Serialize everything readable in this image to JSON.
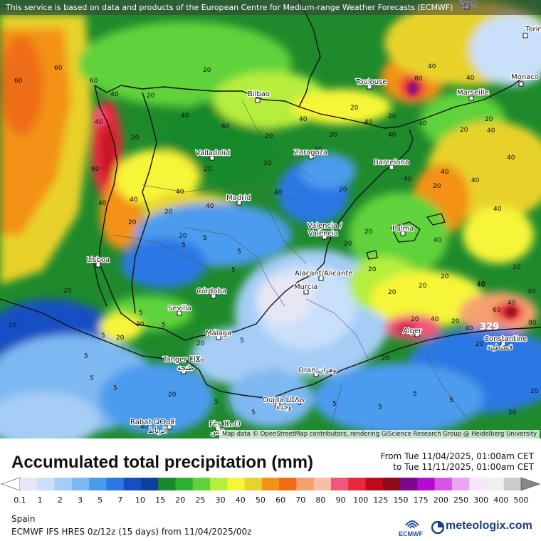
{
  "banner_text": "This service is based on data and products of the European Centre for Medium-range Weather Forecasts (ECMWF)",
  "map_credit": "Map data © OpenStreetMap contributors, rendering GIScience Research Group @ Heidelberg University",
  "title": "Accumulated total precipitation (mm)",
  "period_from": "From Tue 11/04/2025, 01:00am CET",
  "period_to": "to Tue 11/11/2025, 01:00am CET",
  "region": "Spain",
  "model_info": "ECMWF IFS HRES 0z/12z (15 days) from  11/04/2025/00z",
  "ecmwf_label": "ECMWF",
  "brand": "meteologix.com",
  "max_value_label": "329",
  "legend": {
    "ticks": [
      "0.1",
      "1",
      "2",
      "3",
      "5",
      "7",
      "10",
      "15",
      "20",
      "25",
      "30",
      "40",
      "50",
      "60",
      "70",
      "80",
      "90",
      "100",
      "125",
      "150",
      "175",
      "200",
      "250",
      "300",
      "400",
      "500"
    ],
    "colors": [
      "#e6e6f5",
      "#c8e0fa",
      "#a5cdf5",
      "#7db8f2",
      "#4b9bee",
      "#2c78e4",
      "#1550c3",
      "#0d3f9e",
      "#178a2c",
      "#2fb02e",
      "#60d23a",
      "#b6ee3c",
      "#f7f538",
      "#e8d22b",
      "#f39219",
      "#ef6d13",
      "#f6a070",
      "#f7c0a6",
      "#f2567a",
      "#e8293c",
      "#bf0a1e",
      "#8f0a18",
      "#7b0a8a",
      "#b60ad2",
      "#da52e9",
      "#eea4f5",
      "#f7e6f7",
      "#f0f0f0",
      "#cccccc"
    ]
  },
  "cities": [
    {
      "name": "Lyon"
    },
    {
      "name": "Torino"
    },
    {
      "name": "Monaco"
    },
    {
      "name": "Toulouse"
    },
    {
      "name": "Marseille"
    },
    {
      "name": "Bilbao"
    },
    {
      "name": "Valladolid"
    },
    {
      "name": "Zaragoza"
    },
    {
      "name": "Barcelona"
    },
    {
      "name": "Madrid"
    },
    {
      "name": "Palma"
    },
    {
      "name": "Valencia /"
    },
    {
      "name": "València"
    },
    {
      "name": "Lisboa"
    },
    {
      "name": "Alacant/Alicante"
    },
    {
      "name": "Murcia"
    },
    {
      "name": "Córdoba"
    },
    {
      "name": "Sevilla"
    },
    {
      "name": "Málaga"
    },
    {
      "name": "Alger"
    },
    {
      "name": "Constantine"
    },
    {
      "name": "قسنطينة"
    },
    {
      "name": "Tanger ⵟⵏⴵⴰ"
    },
    {
      "name": "طنجة"
    },
    {
      "name": "Oran وهران"
    },
    {
      "name": "Oujda ⵡⵊⴷⴰ"
    },
    {
      "name": "وجدة"
    },
    {
      "name": "Rabat ⵕⴱⴰⵟ"
    },
    {
      "name": "الرباط"
    },
    {
      "name": "Fès ⴼⴰⵙ"
    },
    {
      "name": "فاس"
    }
  ],
  "value_labels": [
    "60",
    "60",
    "60",
    "60",
    "80",
    "40",
    "20",
    "40",
    "20",
    "40",
    "40",
    "20",
    "20",
    "20",
    "40",
    "40",
    "60",
    "20",
    "20",
    "40",
    "20",
    "20",
    "40",
    "20",
    "40",
    "20",
    "20",
    "40",
    "20",
    "40",
    "20",
    "40",
    "40",
    "40",
    "40",
    "20",
    "40",
    "20",
    "40",
    "40",
    "40",
    "20",
    "40",
    "20",
    "40",
    "20",
    "20",
    "20",
    "20",
    "40",
    "40",
    "20",
    "20",
    "20",
    "20",
    "40",
    "20",
    "40",
    "20",
    "20",
    "20",
    "5",
    "5",
    "20",
    "40",
    "5",
    "5",
    "5",
    "20",
    "5",
    "5",
    "5",
    "5",
    "5",
    "5",
    "5",
    "20",
    "20",
    "40",
    "60",
    "80",
    "40",
    "20",
    "20",
    "5",
    "5",
    "5",
    "5",
    "5",
    "5",
    "20",
    "20"
  ]
}
